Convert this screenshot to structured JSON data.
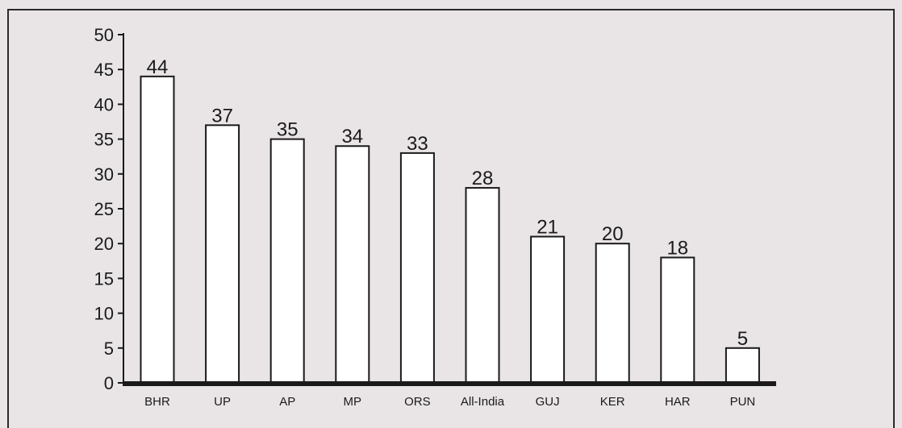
{
  "chart_data": {
    "type": "bar",
    "title": "",
    "xlabel": "",
    "ylabel": "",
    "categories": [
      "BHR",
      "UP",
      "AP",
      "MP",
      "ORS",
      "All-India",
      "GUJ",
      "KER",
      "HAR",
      "PUN"
    ],
    "values": [
      44,
      37,
      35,
      34,
      33,
      28,
      21,
      20,
      18,
      5
    ],
    "ylim": [
      0,
      50
    ],
    "yticks": [
      0,
      5,
      10,
      15,
      20,
      25,
      30,
      35,
      40,
      45,
      50
    ],
    "data_labels": true,
    "grid": false,
    "legend": "none",
    "colors": {
      "bar_fill": "#ffffff",
      "bar_stroke": "#1a1a1a",
      "axis": "#1a1a1a",
      "background": "#e9e5e6"
    }
  }
}
